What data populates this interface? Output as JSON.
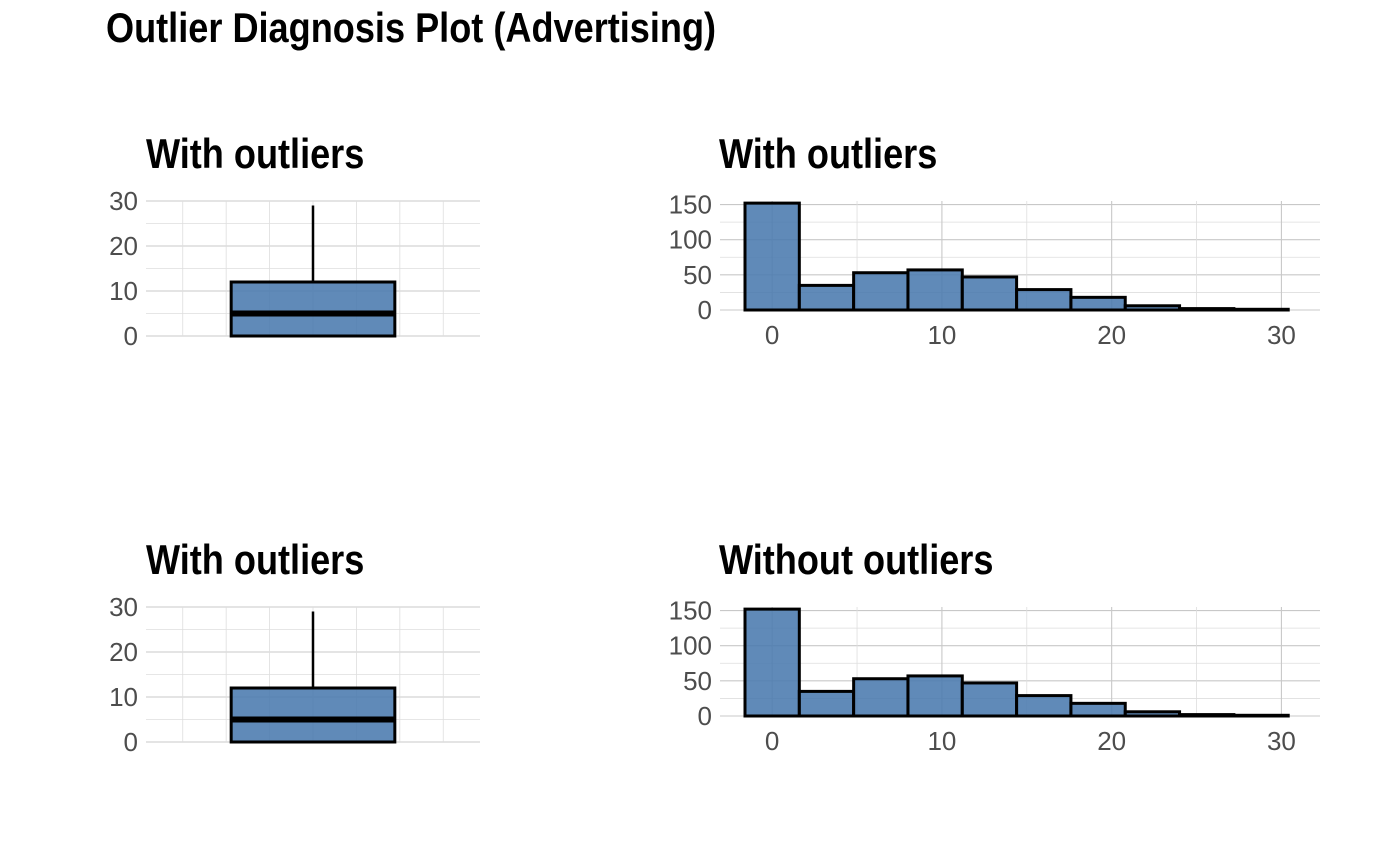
{
  "title": "Outlier Diagnosis Plot (Advertising)",
  "colors": {
    "fill": "#4a7aae",
    "outline": "#000000",
    "grid": "#c8c8c8"
  },
  "chart_data": [
    {
      "type": "box",
      "title": "With outliers",
      "xlabel": "",
      "ylabel": "",
      "ylim": [
        0,
        30
      ],
      "yticks": [
        "0",
        "10",
        "20",
        "30"
      ],
      "stats": {
        "min": 0,
        "q1": 0,
        "median": 5,
        "q3": 12,
        "max": 29
      },
      "grid": true
    },
    {
      "type": "bar",
      "title": "With outliers",
      "xlabel": "",
      "ylabel": "",
      "xlim": [
        -1.6,
        30.8
      ],
      "ylim": [
        0,
        155
      ],
      "xticks": [
        "0",
        "10",
        "20",
        "30"
      ],
      "yticks": [
        "0",
        "50",
        "100",
        "150"
      ],
      "bins": [
        {
          "x0": -1.6,
          "x1": 1.6,
          "count": 152
        },
        {
          "x0": 1.6,
          "x1": 4.8,
          "count": 35
        },
        {
          "x0": 4.8,
          "x1": 8.0,
          "count": 53
        },
        {
          "x0": 8.0,
          "x1": 11.2,
          "count": 57
        },
        {
          "x0": 11.2,
          "x1": 14.4,
          "count": 47
        },
        {
          "x0": 14.4,
          "x1": 17.6,
          "count": 29
        },
        {
          "x0": 17.6,
          "x1": 20.8,
          "count": 18
        },
        {
          "x0": 20.8,
          "x1": 24.0,
          "count": 6
        },
        {
          "x0": 24.0,
          "x1": 27.2,
          "count": 2
        },
        {
          "x0": 27.2,
          "x1": 30.4,
          "count": 1
        }
      ],
      "grid": true
    },
    {
      "type": "box",
      "title": "With outliers",
      "xlabel": "",
      "ylabel": "",
      "ylim": [
        0,
        30
      ],
      "yticks": [
        "0",
        "10",
        "20",
        "30"
      ],
      "stats": {
        "min": 0,
        "q1": 0,
        "median": 5,
        "q3": 12,
        "max": 29
      },
      "grid": true
    },
    {
      "type": "bar",
      "title": "Without outliers",
      "xlabel": "",
      "ylabel": "",
      "xlim": [
        -1.6,
        30.8
      ],
      "ylim": [
        0,
        155
      ],
      "xticks": [
        "0",
        "10",
        "20",
        "30"
      ],
      "yticks": [
        "0",
        "50",
        "100",
        "150"
      ],
      "bins": [
        {
          "x0": -1.6,
          "x1": 1.6,
          "count": 152
        },
        {
          "x0": 1.6,
          "x1": 4.8,
          "count": 35
        },
        {
          "x0": 4.8,
          "x1": 8.0,
          "count": 53
        },
        {
          "x0": 8.0,
          "x1": 11.2,
          "count": 57
        },
        {
          "x0": 11.2,
          "x1": 14.4,
          "count": 47
        },
        {
          "x0": 14.4,
          "x1": 17.6,
          "count": 29
        },
        {
          "x0": 17.6,
          "x1": 20.8,
          "count": 18
        },
        {
          "x0": 20.8,
          "x1": 24.0,
          "count": 6
        },
        {
          "x0": 24.0,
          "x1": 27.2,
          "count": 2
        },
        {
          "x0": 27.2,
          "x1": 30.4,
          "count": 1
        }
      ],
      "grid": true
    }
  ]
}
